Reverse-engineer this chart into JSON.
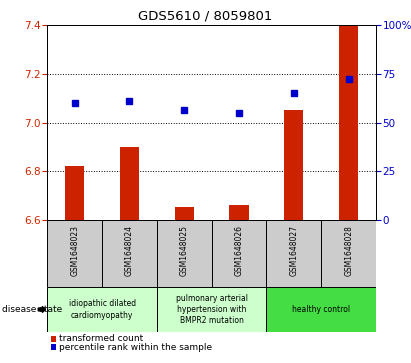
{
  "title": "GDS5610 / 8059801",
  "categories": [
    "GSM1648023",
    "GSM1648024",
    "GSM1648025",
    "GSM1648026",
    "GSM1648027",
    "GSM1648028"
  ],
  "bar_values": [
    6.82,
    6.9,
    6.65,
    6.66,
    7.05,
    7.4
  ],
  "scatter_values": [
    7.08,
    7.09,
    7.05,
    7.04,
    7.12,
    7.18
  ],
  "ylim": [
    6.6,
    7.4
  ],
  "y2lim": [
    0,
    100
  ],
  "yticks": [
    6.6,
    6.8,
    7.0,
    7.2,
    7.4
  ],
  "y2ticks": [
    0,
    25,
    50,
    75,
    100
  ],
  "bar_color": "#cc2200",
  "scatter_color": "#0000cc",
  "bar_bottom": 6.6,
  "legend_bar_label": "transformed count",
  "legend_scatter_label": "percentile rank within the sample",
  "disease_state_label": "disease state",
  "axis_color_left": "#cc2200",
  "axis_color_right": "#0000cc",
  "bg_color": "#ffffff",
  "sample_bg_color": "#cccccc",
  "disease_groups": [
    {
      "start": 0,
      "end": 1,
      "label": "idiopathic dilated\ncardiomyopathy",
      "color": "#ccffcc"
    },
    {
      "start": 2,
      "end": 3,
      "label": "pulmonary arterial\nhypertension with\nBMPR2 mutation",
      "color": "#ccffcc"
    },
    {
      "start": 4,
      "end": 5,
      "label": "healthy control",
      "color": "#44dd44"
    }
  ]
}
